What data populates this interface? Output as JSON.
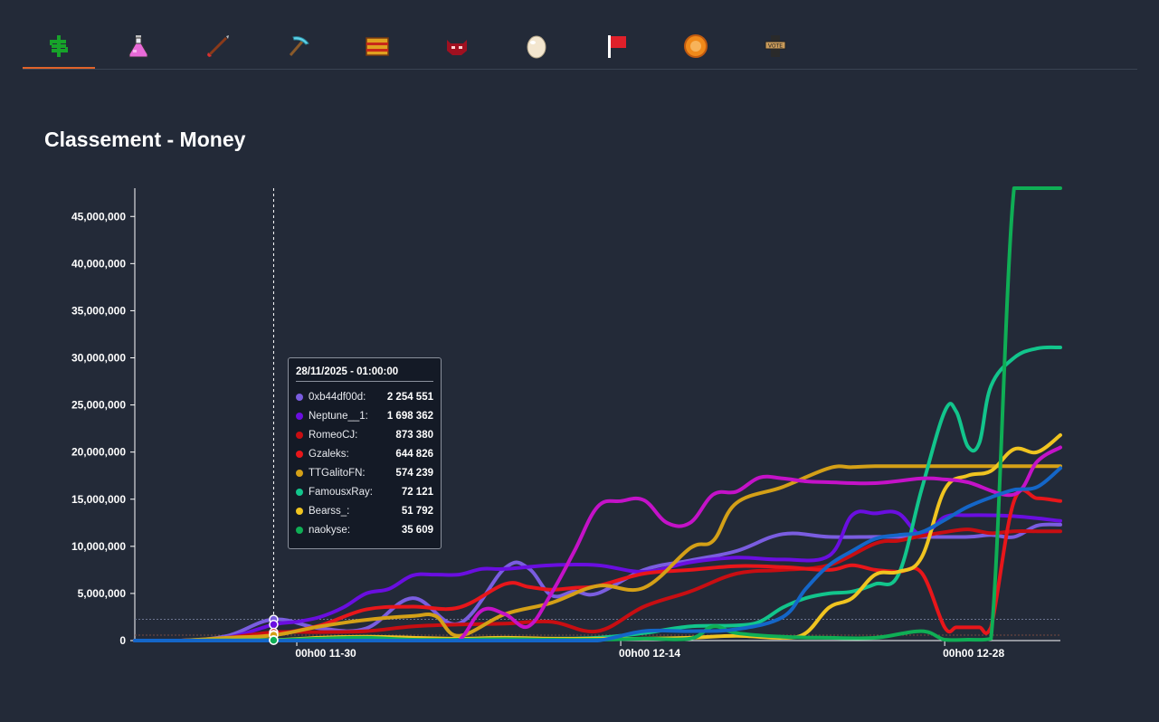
{
  "tabs": [
    {
      "icon": "money-icon",
      "active": true
    },
    {
      "icon": "potion-icon",
      "active": false
    },
    {
      "icon": "arrow-icon",
      "active": false
    },
    {
      "icon": "pickaxe-icon",
      "active": false
    },
    {
      "icon": "chest-icon",
      "active": false
    },
    {
      "icon": "mob-icon",
      "active": false
    },
    {
      "icon": "egg-icon",
      "active": false
    },
    {
      "icon": "flag-icon",
      "active": false
    },
    {
      "icon": "orange-badge-icon",
      "active": false
    },
    {
      "icon": "vote-icon",
      "active": false
    }
  ],
  "page": {
    "title": "Classement - Money"
  },
  "tooltip": {
    "date": "28/11/2025 - 01:00:00",
    "rows": [
      {
        "name": "0xb44df00d:",
        "value": "2 254 551",
        "color": "#7a5de0"
      },
      {
        "name": "Neptune__1:",
        "value": "1 698 362",
        "color": "#6a0ee0"
      },
      {
        "name": "RomeoCJ:",
        "value": "873 380",
        "color": "#c80e12"
      },
      {
        "name": "Gzaleks:",
        "value": "644 826",
        "color": "#e8161a"
      },
      {
        "name": "TTGalitoFN:",
        "value": "574 239",
        "color": "#d4a017"
      },
      {
        "name": "FamousxRay:",
        "value": "72 121",
        "color": "#12c58c"
      },
      {
        "name": "Bearss_:",
        "value": "51 792",
        "color": "#f0c420"
      },
      {
        "name": "naokyse:",
        "value": "35 609",
        "color": "#0fae55"
      }
    ]
  },
  "chart_data": {
    "type": "line",
    "title": "Classement - Money",
    "ylim": [
      0,
      48000000
    ],
    "yticks": [
      0,
      5000000,
      10000000,
      15000000,
      20000000,
      25000000,
      30000000,
      35000000,
      40000000,
      45000000
    ],
    "ytick_labels": [
      "0",
      "5,000,000",
      "10,000,000",
      "15,000,000",
      "20,000,000",
      "25,000,000",
      "30,000,000",
      "35,000,000",
      "40,000,000",
      "45,000,000"
    ],
    "xlim": [
      0,
      40
    ],
    "xticks": [
      {
        "x": 7,
        "label": "00h00 11-30"
      },
      {
        "x": 21,
        "label": "00h00 12-14"
      },
      {
        "x": 35,
        "label": "00h00 12-28"
      }
    ],
    "crosshair_x": 6,
    "series": [
      {
        "name": "0xb44df00d",
        "color": "#7a5de0",
        "x": [
          0,
          2,
          4,
          6,
          8,
          10,
          12,
          14,
          16,
          17,
          18,
          19,
          20,
          22,
          24,
          26,
          28,
          30,
          32,
          34,
          36,
          37,
          38,
          39,
          40
        ],
        "y": [
          0,
          0,
          500000,
          2250000,
          1300000,
          1300000,
          4500000,
          1800000,
          7700000,
          7700000,
          4800000,
          5200000,
          5000000,
          7500000,
          8500000,
          9500000,
          11300000,
          11000000,
          11000000,
          11000000,
          11000000,
          11200000,
          11000000,
          12200000,
          12300000
        ]
      },
      {
        "name": "Neptune__1",
        "color": "#6a0ee0",
        "x": [
          0,
          2,
          4,
          6,
          7,
          8,
          9,
          10,
          11,
          12,
          13,
          14,
          15,
          16,
          18,
          20,
          22,
          24,
          26,
          28,
          30,
          31,
          32,
          33,
          34,
          35,
          36,
          38,
          40
        ],
        "y": [
          0,
          0,
          300000,
          1700000,
          2000000,
          2500000,
          3500000,
          5000000,
          5500000,
          6900000,
          7000000,
          7000000,
          7600000,
          7600000,
          8000000,
          8000000,
          7300000,
          8300000,
          8800000,
          8600000,
          9000000,
          13300000,
          13500000,
          13500000,
          11200000,
          13100000,
          13300000,
          13200000,
          12700000
        ]
      },
      {
        "name": "RomeoCJ",
        "color": "#c80e12",
        "x": [
          0,
          2,
          4,
          6,
          8,
          10,
          12,
          14,
          16,
          18,
          20,
          22,
          24,
          26,
          28,
          30,
          32,
          33,
          34,
          35,
          36,
          37,
          38,
          39,
          40
        ],
        "y": [
          0,
          0,
          300000,
          870000,
          900000,
          1000000,
          1500000,
          1700000,
          1800000,
          2000000,
          1000000,
          3600000,
          5200000,
          7100000,
          7500000,
          8000000,
          10300000,
          10600000,
          11100000,
          11500000,
          11800000,
          11400000,
          11600000,
          11600000,
          11600000
        ]
      },
      {
        "name": "Gzaleks",
        "color": "#e8161a",
        "x": [
          0,
          2,
          4,
          6,
          8,
          10,
          12,
          14,
          16,
          17,
          18,
          19,
          20,
          22,
          24,
          26,
          28,
          30,
          31,
          32,
          33,
          34,
          35,
          35.5,
          36,
          36.5,
          37,
          38,
          39,
          40
        ],
        "y": [
          0,
          0,
          200000,
          640000,
          1600000,
          3300000,
          3600000,
          3500000,
          6000000,
          5700000,
          5400000,
          5600000,
          5800000,
          7100000,
          7500000,
          7900000,
          7800000,
          7500000,
          8000000,
          7500000,
          7300000,
          7200000,
          1400000,
          1400000,
          1400000,
          1400000,
          1400000,
          14800000,
          15100000,
          14800000
        ]
      },
      {
        "name": "TTGalitoFN",
        "color": "#d4a017",
        "x": [
          0,
          2,
          4,
          6,
          8,
          10,
          12,
          13,
          14,
          16,
          18,
          20,
          22,
          24,
          25,
          26,
          28,
          30,
          31,
          32,
          34,
          36,
          38,
          40
        ],
        "y": [
          0,
          0,
          300000,
          570000,
          1500000,
          2200000,
          2600000,
          2600000,
          500000,
          2800000,
          4000000,
          5800000,
          5600000,
          9800000,
          10600000,
          14600000,
          16300000,
          18300000,
          18400000,
          18500000,
          18500000,
          18500000,
          18500000,
          18500000
        ]
      },
      {
        "name": "FamousxRay",
        "color": "#12c58c",
        "x": [
          0,
          2,
          4,
          6,
          8,
          10,
          12,
          14,
          16,
          18,
          20,
          22,
          24,
          26,
          27,
          28,
          29,
          30,
          31,
          32,
          33,
          34,
          35,
          35.5,
          36,
          36.5,
          37,
          38,
          39,
          40
        ],
        "y": [
          0,
          0,
          50000,
          72000,
          100000,
          100000,
          100000,
          100000,
          200000,
          200000,
          300000,
          800000,
          1500000,
          1600000,
          2000000,
          3500000,
          4500000,
          5000000,
          5200000,
          6000000,
          7000000,
          16000000,
          24300000,
          24300000,
          20600000,
          21000000,
          27000000,
          30000000,
          31000000,
          31100000
        ]
      },
      {
        "name": "Bearss_",
        "color": "#f0c420",
        "x": [
          0,
          2,
          4,
          6,
          8,
          10,
          12,
          14,
          16,
          18,
          20,
          22,
          24,
          26,
          28,
          29,
          30,
          31,
          32,
          33,
          34,
          35,
          36,
          37,
          38,
          39,
          40
        ],
        "y": [
          0,
          0,
          30000,
          52000,
          300000,
          400000,
          300000,
          200000,
          300000,
          200000,
          200000,
          200000,
          300000,
          500000,
          300000,
          800000,
          3500000,
          4500000,
          7000000,
          7300000,
          8800000,
          16000000,
          17500000,
          18000000,
          20300000,
          20000000,
          21800000
        ]
      },
      {
        "name": "naokyse",
        "color": "#0fae55",
        "x": [
          0,
          2,
          4,
          6,
          8,
          10,
          12,
          14,
          16,
          18,
          20,
          22,
          24,
          25,
          26,
          28,
          30,
          32,
          34,
          35,
          36,
          37,
          38,
          39,
          40
        ],
        "y": [
          0,
          0,
          20000,
          36000,
          200000,
          300000,
          100000,
          100000,
          150000,
          100000,
          100000,
          200000,
          200000,
          1500000,
          800000,
          400000,
          300000,
          300000,
          1000000,
          100000,
          100000,
          200000,
          48000000,
          48000000,
          48000000
        ]
      },
      {
        "name": "",
        "color": "#c412c8",
        "x": [
          0,
          2,
          4,
          6,
          8,
          10,
          12,
          13,
          14,
          15,
          16,
          17,
          18,
          19,
          20,
          21,
          22,
          23,
          24,
          25,
          26,
          27,
          28,
          29,
          30,
          32,
          34,
          35,
          36,
          38,
          39,
          40
        ],
        "y": [
          0,
          0,
          0,
          0,
          0,
          0,
          0,
          0,
          0,
          3200000,
          2800000,
          1500000,
          5000000,
          9500000,
          14200000,
          14800000,
          14900000,
          12500000,
          12500000,
          15500000,
          15800000,
          17300000,
          17200000,
          16900000,
          16800000,
          16700000,
          17200000,
          17100000,
          16800000,
          15500000,
          19000000,
          20500000
        ]
      },
      {
        "name": "",
        "color": "#1466c8",
        "x": [
          0,
          2,
          4,
          6,
          8,
          10,
          12,
          14,
          16,
          18,
          20,
          22,
          24,
          26,
          28,
          29,
          30,
          31,
          32,
          33,
          34,
          35,
          36,
          37,
          38,
          39,
          40
        ],
        "y": [
          0,
          0,
          0,
          0,
          0,
          0,
          0,
          0,
          0,
          0,
          0,
          1000000,
          1000000,
          1200000,
          2500000,
          5500000,
          8000000,
          9500000,
          10800000,
          11200000,
          11500000,
          12800000,
          14200000,
          15200000,
          16000000,
          16300000,
          18300000
        ]
      }
    ]
  }
}
